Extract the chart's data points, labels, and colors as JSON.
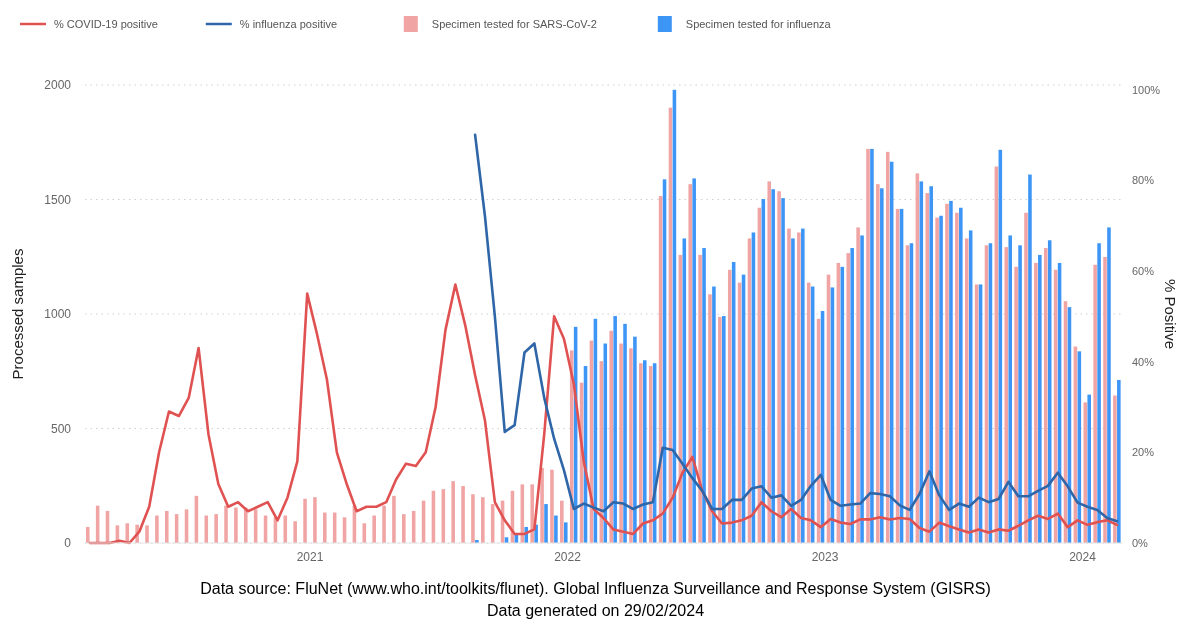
{
  "chart_data": {
    "type": "bar",
    "ylabel": "Processed samples",
    "y2label": "% Positive",
    "x": [
      "2020-02-24",
      "2020-03-09",
      "2020-03-23",
      "2020-04-06",
      "2020-04-20",
      "2020-05-04",
      "2020-05-18",
      "2020-06-01",
      "2020-06-15",
      "2020-06-29",
      "2020-07-13",
      "2020-07-27",
      "2020-08-10",
      "2020-08-24",
      "2020-09-07",
      "2020-09-21",
      "2020-10-05",
      "2020-10-19",
      "2020-11-02",
      "2020-11-16",
      "2020-11-30",
      "2020-12-14",
      "2020-12-28",
      "2021-01-11",
      "2021-01-25",
      "2021-02-08",
      "2021-02-22",
      "2021-03-08",
      "2021-03-22",
      "2021-04-05",
      "2021-04-19",
      "2021-05-03",
      "2021-05-17",
      "2021-05-31",
      "2021-06-14",
      "2021-06-28",
      "2021-07-12",
      "2021-07-26",
      "2021-08-09",
      "2021-08-23",
      "2021-09-06",
      "2021-09-20",
      "2021-10-04",
      "2021-10-18",
      "2021-11-01",
      "2021-11-15",
      "2021-11-29",
      "2021-12-13",
      "2021-12-27",
      "2022-01-10",
      "2022-01-24",
      "2022-02-07",
      "2022-02-21",
      "2022-03-07",
      "2022-03-21",
      "2022-04-04",
      "2022-04-18",
      "2022-05-02",
      "2022-05-16",
      "2022-05-30",
      "2022-06-13",
      "2022-06-27",
      "2022-07-11",
      "2022-07-25",
      "2022-08-08",
      "2022-08-22",
      "2022-09-05",
      "2022-09-19",
      "2022-10-03",
      "2022-10-17",
      "2022-10-31",
      "2022-11-14",
      "2022-11-28",
      "2022-12-12",
      "2022-12-26",
      "2023-01-09",
      "2023-01-23",
      "2023-02-06",
      "2023-02-20",
      "2023-03-06",
      "2023-03-20",
      "2023-04-03",
      "2023-04-17",
      "2023-05-01",
      "2023-05-15",
      "2023-05-29",
      "2023-06-12",
      "2023-06-26",
      "2023-07-10",
      "2023-07-24",
      "2023-08-07",
      "2023-08-21",
      "2023-09-04",
      "2023-09-18",
      "2023-10-02",
      "2023-10-16",
      "2023-10-30",
      "2023-11-13",
      "2023-11-27",
      "2023-12-11",
      "2023-12-25",
      "2024-01-08",
      "2024-01-22",
      "2024-02-05",
      "2024-02-19"
    ],
    "series": [
      {
        "name": "% COVID-19 positive",
        "type": "line",
        "axis": "y2",
        "color": "#e05252",
        "values": [
          0,
          0,
          0,
          0.5,
          0,
          2.5,
          8,
          20,
          29,
          28,
          32,
          43,
          24,
          13,
          8,
          9,
          7,
          8,
          9,
          5,
          10,
          18,
          55,
          46,
          36,
          20,
          13,
          7,
          8,
          8,
          9,
          14,
          17.5,
          17,
          20,
          30,
          47,
          57,
          48,
          37,
          27,
          9,
          5,
          2,
          2,
          3,
          24,
          50,
          45,
          35,
          18,
          7.5,
          5.5,
          3,
          2.5,
          2,
          4.3,
          5,
          6.5,
          10,
          15.5,
          19,
          11.5,
          7,
          4.3,
          4.5,
          5,
          6,
          9,
          7,
          5.7,
          7.5,
          5.5,
          5,
          3.5,
          5.3,
          4.5,
          4.2,
          5.2,
          5.2,
          5.7,
          5.2,
          5.5,
          5.3,
          3.3,
          2.5,
          4.5,
          3.7,
          3,
          2.3,
          3,
          2.3,
          3,
          2.7,
          3.8,
          5,
          6,
          5.3,
          6.5,
          3.5,
          5,
          4,
          4.6,
          5,
          4
        ]
      },
      {
        "name": "% influenza positive",
        "type": "line",
        "axis": "y2",
        "color": "#2e66a8",
        "values": [
          null,
          null,
          null,
          null,
          null,
          null,
          null,
          null,
          null,
          null,
          null,
          null,
          null,
          null,
          null,
          null,
          null,
          null,
          null,
          null,
          null,
          null,
          null,
          null,
          null,
          null,
          null,
          null,
          null,
          null,
          null,
          null,
          null,
          null,
          null,
          null,
          null,
          null,
          null,
          90,
          72,
          50,
          24.5,
          26,
          42,
          44,
          32,
          23,
          16,
          7.5,
          8.7,
          7.8,
          7,
          9,
          8.7,
          7.5,
          8.5,
          9,
          21,
          20.5,
          17.5,
          14.3,
          11.5,
          7.5,
          7.5,
          9.5,
          9.5,
          12,
          12.5,
          10,
          10.5,
          8.2,
          9.5,
          12.6,
          15,
          9.5,
          8.2,
          8.5,
          8.7,
          11,
          10.8,
          10.3,
          8.3,
          7.3,
          10.8,
          15.8,
          10.5,
          7.3,
          8.7,
          8,
          10,
          9,
          9.7,
          13.5,
          10.3,
          10.3,
          11.5,
          12.6,
          15.5,
          12.5,
          8.9,
          8,
          7.3,
          5.5,
          4.8
        ]
      },
      {
        "name": "Specimen tested for SARS-CoV-2",
        "color": "#f0a4a4",
        "values": [
          70,
          163,
          140,
          77,
          86,
          80,
          77,
          120,
          140,
          126,
          147,
          206,
          120,
          126,
          163,
          155,
          155,
          147,
          120,
          112,
          120,
          95,
          193,
          200,
          133,
          133,
          112,
          163,
          86,
          120,
          163,
          206,
          126,
          140,
          185,
          228,
          235,
          270,
          249,
          213,
          200,
          170,
          185,
          228,
          256,
          256,
          328,
          320,
          185,
          841,
          700,
          884,
          794,
          927,
          871,
          850,
          785,
          773,
          1515,
          1901,
          1258,
          1567,
          1258,
          1086,
          987,
          1193,
          1137,
          1330,
          1464,
          1579,
          1536,
          1373,
          1356,
          1137,
          979,
          1172,
          1223,
          1266,
          1378,
          1721,
          1567,
          1708,
          1459,
          1300,
          1614,
          1528,
          1421,
          1481,
          1442,
          1330,
          1129,
          1300,
          1644,
          1292,
          1206,
          1442,
          1223,
          1288,
          1193,
          1056,
          858,
          614,
          1215,
          1249,
          644
        ]
      },
      {
        "name": "Specimen tested for influenza",
        "color": "#3d95f5",
        "values": [
          null,
          null,
          null,
          null,
          null,
          null,
          null,
          null,
          null,
          null,
          null,
          null,
          null,
          null,
          null,
          null,
          null,
          null,
          null,
          null,
          null,
          null,
          null,
          null,
          null,
          null,
          null,
          null,
          null,
          null,
          null,
          null,
          null,
          null,
          null,
          null,
          null,
          null,
          null,
          13,
          null,
          null,
          25,
          35,
          70,
          80,
          170,
          120,
          90,
          944,
          773,
          979,
          871,
          991,
          957,
          901,
          798,
          785,
          1588,
          1979,
          1330,
          1592,
          1288,
          1120,
          991,
          1227,
          1172,
          1356,
          1502,
          1545,
          1506,
          1330,
          1373,
          1120,
          1013,
          1116,
          1206,
          1288,
          1343,
          1721,
          1549,
          1665,
          1459,
          1309,
          1579,
          1558,
          1429,
          1494,
          1464,
          1365,
          1129,
          1309,
          1717,
          1343,
          1300,
          1609,
          1258,
          1322,
          1223,
          1030,
          837,
          648,
          1309,
          1378,
          712
        ]
      }
    ],
    "xlim": [
      "2020-02-17",
      "2024-02-26"
    ],
    "xticks": [
      {
        "value": "2021-01-01",
        "label": "2021"
      },
      {
        "value": "2022-01-01",
        "label": "2022"
      },
      {
        "value": "2023-01-01",
        "label": "2023"
      },
      {
        "value": "2024-01-01",
        "label": "2024"
      }
    ],
    "ylim": [
      0,
      2000
    ],
    "yticks": [
      0,
      500,
      1000,
      1500,
      2000
    ],
    "y2lim": [
      0,
      101
    ],
    "y2ticks": [
      {
        "value": 0,
        "label": "0%"
      },
      {
        "value": 20,
        "label": "20%"
      },
      {
        "value": 40,
        "label": "40%"
      },
      {
        "value": 60,
        "label": "60%"
      },
      {
        "value": 80,
        "label": "80%"
      },
      {
        "value": 100,
        "label": "100%"
      }
    ],
    "grid": "y",
    "legend": "top left",
    "annotations": [
      "Data source: FluNet (www.who.int/toolkits/flunet). Global Influenza Surveillance and Response System (GISRS)",
      "Data generated on 29/02/2024"
    ]
  }
}
